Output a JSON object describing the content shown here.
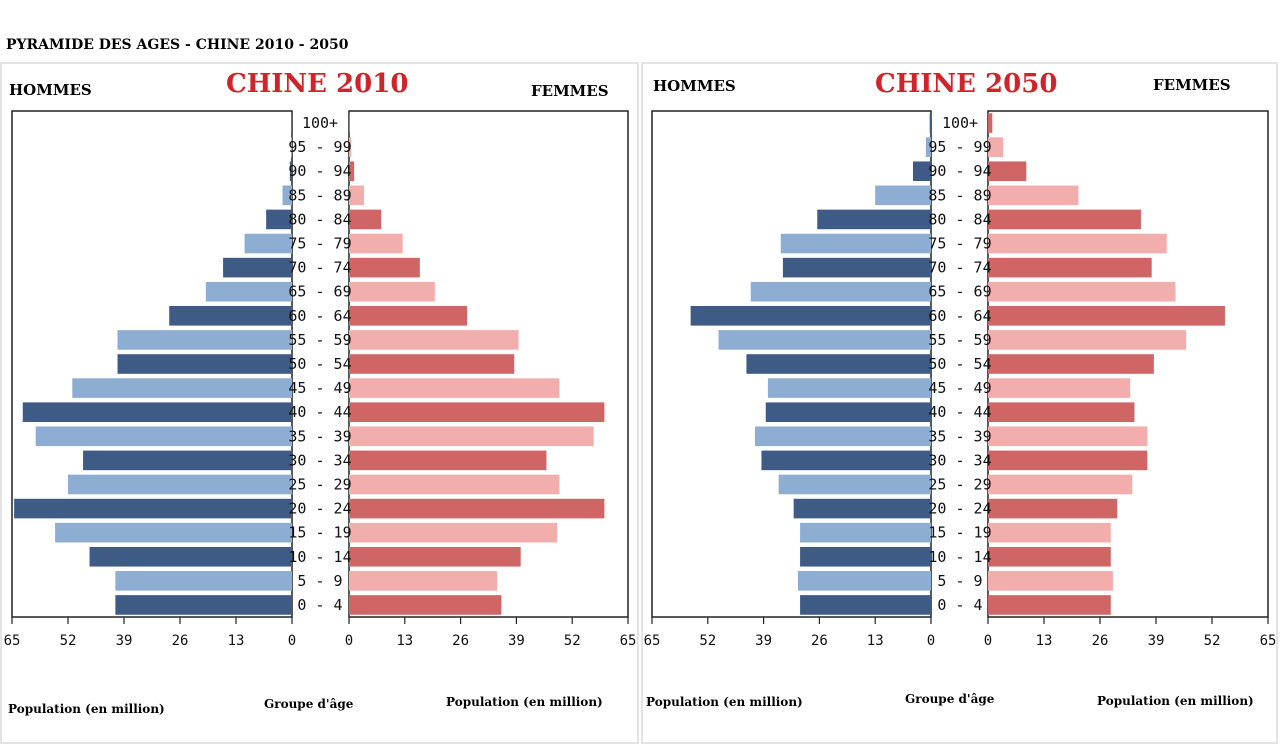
{
  "main_title": "PYRAMIDE DES AGES - CHINE 2010 - 2050",
  "colors": {
    "men_light": "#8eadd2",
    "men_dark": "#3e5b85",
    "women_light": "#f2adad",
    "women_dark": "#cf6565",
    "title_red": "#d0242a"
  },
  "chart_data": [
    {
      "type": "bar",
      "title": "CHINE 2010",
      "left_label": "HOMMES",
      "right_label": "FEMMES",
      "center_xlabel": "Groupe d'âge",
      "left_xlabel": "Population (en million)",
      "right_xlabel": "Population (en million)",
      "xlim": [
        0,
        65
      ],
      "ticks_left": [
        "65",
        "52",
        "39",
        "26",
        "13",
        "0"
      ],
      "ticks_right": [
        "0",
        "13",
        "26",
        "39",
        "52",
        "65"
      ],
      "categories": [
        "100+",
        "95 - 99",
        "90 - 94",
        "85 - 89",
        "80 - 84",
        "75 - 79",
        "70 - 74",
        "65 - 69",
        "60 - 64",
        "55 - 59",
        "50 - 54",
        "45 - 49",
        "40 - 44",
        "35 - 39",
        "30 - 34",
        "25 - 29",
        "20 - 24",
        "15 - 19",
        "10 - 14",
        "5 - 9",
        "0 - 4"
      ],
      "series": [
        {
          "name": "HOMMES",
          "values": [
            0.1,
            0.2,
            0.5,
            2.2,
            6,
            11,
            16,
            20,
            28.5,
            40.5,
            40.5,
            51,
            62.5,
            59.5,
            48.5,
            52,
            64.5,
            55,
            47,
            41,
            41
          ]
        },
        {
          "name": "FEMMES",
          "values": [
            0.2,
            0.5,
            1.2,
            3.5,
            7.5,
            12.5,
            16.5,
            20,
            27.5,
            39.5,
            38.5,
            49,
            59.5,
            57,
            46,
            49,
            59.5,
            48.5,
            40,
            34.5,
            35.5
          ]
        }
      ]
    },
    {
      "type": "bar",
      "title": "CHINE 2050",
      "left_label": "HOMMES",
      "right_label": "FEMMES",
      "center_xlabel": "Groupe d'âge",
      "left_xlabel": "Population (en million)",
      "right_xlabel": "Population (en million)",
      "xlim": [
        0,
        65
      ],
      "ticks_left": [
        "65",
        "52",
        "39",
        "26",
        "13",
        "0"
      ],
      "ticks_right": [
        "0",
        "13",
        "26",
        "39",
        "52",
        "65"
      ],
      "categories": [
        "100+",
        "95 - 99",
        "90 - 94",
        "85 - 89",
        "80 - 84",
        "75 - 79",
        "70 - 74",
        "65 - 69",
        "60 - 64",
        "55 - 59",
        "50 - 54",
        "45 - 49",
        "40 - 44",
        "35 - 39",
        "30 - 34",
        "25 - 29",
        "20 - 24",
        "15 - 19",
        "10 - 14",
        "5 - 9",
        "0 - 4"
      ],
      "series": [
        {
          "name": "HOMMES",
          "values": [
            0.3,
            1.2,
            4.2,
            13,
            26.5,
            35,
            34.5,
            42,
            56,
            49.5,
            43,
            38,
            38.5,
            41,
            39.5,
            35.5,
            32,
            30.5,
            30.5,
            31,
            30.5
          ]
        },
        {
          "name": "FEMMES",
          "values": [
            1,
            3.5,
            8.9,
            21,
            35.5,
            41.5,
            38,
            43.5,
            55,
            46,
            38.5,
            33,
            34,
            37,
            37,
            33.5,
            30,
            28.5,
            28.5,
            29,
            28.5
          ]
        }
      ]
    }
  ]
}
